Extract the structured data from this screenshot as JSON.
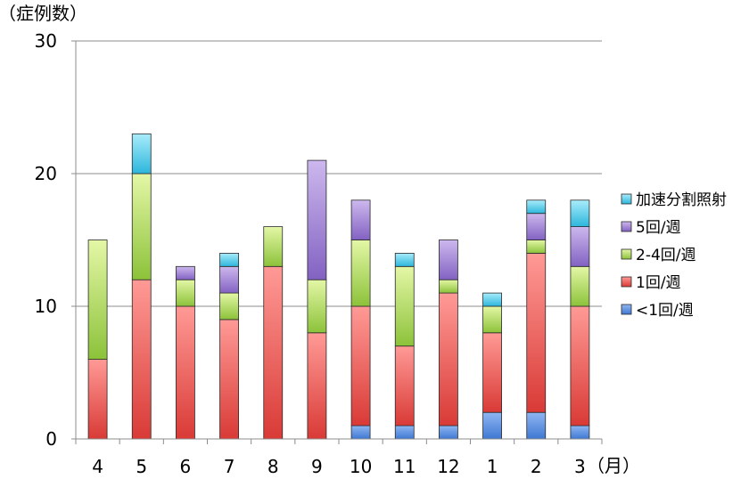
{
  "chart_data": {
    "type": "bar",
    "stacked": true,
    "y_unit_label": "（症例数）",
    "x_unit_label": "（月）",
    "categories": [
      "4",
      "5",
      "6",
      "7",
      "8",
      "9",
      "10",
      "11",
      "12",
      "1",
      "2",
      "3"
    ],
    "ylim": [
      0,
      30
    ],
    "yticks": [
      "0",
      "10",
      "20",
      "30"
    ],
    "grid": true,
    "legend_position": "right",
    "series": [
      {
        "name": "<1回/週",
        "color": "#4f86d9",
        "values": [
          0,
          0,
          0,
          0,
          0,
          0,
          1,
          1,
          1,
          2,
          2,
          1
        ]
      },
      {
        "name": "1回/週",
        "color": "#e55353",
        "values": [
          6,
          12,
          10,
          9,
          13,
          8,
          9,
          6,
          10,
          6,
          12,
          9
        ]
      },
      {
        "name": "2-4回/週",
        "color": "#9ccc3c",
        "values": [
          9,
          8,
          2,
          2,
          3,
          4,
          5,
          6,
          1,
          2,
          1,
          3
        ]
      },
      {
        "name": "5回/週",
        "color": "#8e6cc9",
        "values": [
          0,
          0,
          1,
          2,
          0,
          9,
          3,
          0,
          3,
          0,
          2,
          3
        ]
      },
      {
        "name": "加速分割照射",
        "color": "#3cc1e3",
        "values": [
          0,
          3,
          0,
          1,
          0,
          0,
          0,
          1,
          0,
          1,
          1,
          2
        ]
      }
    ]
  }
}
